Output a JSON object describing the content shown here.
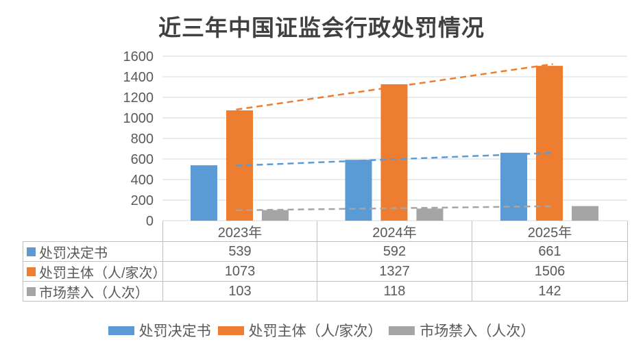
{
  "colors": {
    "series_blue": "#5B9BD5",
    "series_orange": "#ED7D31",
    "series_gray": "#A5A5A5",
    "gridline": "#D9D9D9",
    "table_border": "#BFBFBF",
    "axis_text": "#595959",
    "title_text": "#404040"
  },
  "chart_data": {
    "type": "bar",
    "title": "近三年中国证监会行政处罚情况",
    "categories": [
      "2023年",
      "2024年",
      "2025年"
    ],
    "series": [
      {
        "name": "处罚决定书",
        "color": "#5B9BD5",
        "values": [
          539,
          592,
          661
        ]
      },
      {
        "name": "处罚主体（人/家次）",
        "color": "#ED7D31",
        "values": [
          1073,
          1327,
          1506
        ]
      },
      {
        "name": "市场禁入（人次）",
        "color": "#A5A5A5",
        "values": [
          103,
          118,
          142
        ]
      }
    ],
    "ylabel": "",
    "xlabel": "",
    "ylim": [
      0,
      1600
    ],
    "ytick_step": 200,
    "grid": true,
    "legend_position": "bottom",
    "has_data_table": true,
    "trendlines": {
      "style": "dashed",
      "fit": "linear"
    }
  }
}
